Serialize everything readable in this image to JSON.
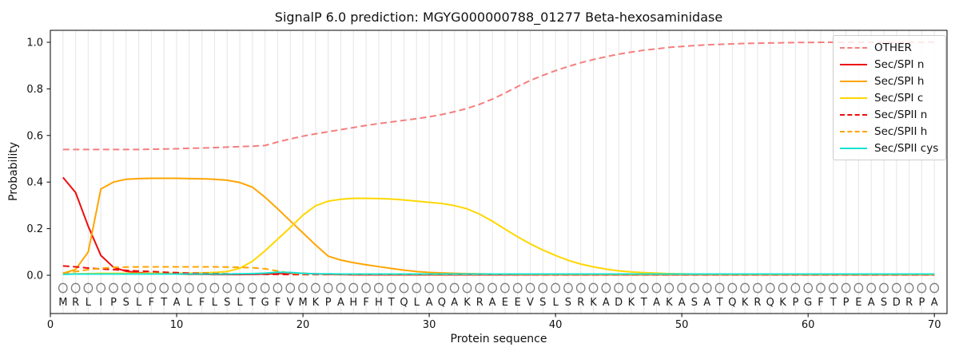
{
  "chart_data": {
    "type": "line",
    "title": "SignalP 6.0 prediction: MGYG000000788_01277 Beta-hexosaminidase",
    "xlabel": "Protein sequence",
    "ylabel": "Probability",
    "xlim": [
      0,
      71
    ],
    "ylim": [
      -0.17,
      1.05
    ],
    "xticks": [
      0,
      10,
      20,
      30,
      40,
      50,
      60,
      70
    ],
    "yticks": [
      0.0,
      0.2,
      0.4,
      0.6,
      0.8,
      1.0
    ],
    "grid": "vertical line per residue, light gray",
    "legend_position": "upper right",
    "sequence": "MRLIPSLFTALFLSLTGFVMKPAHFHTQLAQAKRAEEVSLSRKADKTAKASATQKRQKPGFTPEASDRPA",
    "sequence_marker": "open-circle",
    "colors": {
      "grid": "#e9e9e9",
      "axis": "#000000",
      "sequence_letter": "#1a1a1a",
      "sequence_circle": "#7d7d7d"
    },
    "x_start": 1,
    "series": [
      {
        "name": "OTHER",
        "color": "#f57e7e",
        "style": "dashed",
        "values": [
          0.54,
          0.54,
          0.54,
          0.54,
          0.54,
          0.54,
          0.54,
          0.541,
          0.542,
          0.543,
          0.545,
          0.546,
          0.548,
          0.55,
          0.552,
          0.554,
          0.557,
          0.572,
          0.585,
          0.597,
          0.607,
          0.616,
          0.625,
          0.634,
          0.643,
          0.651,
          0.658,
          0.665,
          0.672,
          0.68,
          0.69,
          0.702,
          0.716,
          0.734,
          0.756,
          0.782,
          0.81,
          0.836,
          0.858,
          0.878,
          0.896,
          0.912,
          0.926,
          0.938,
          0.949,
          0.958,
          0.966,
          0.972,
          0.978,
          0.982,
          0.986,
          0.989,
          0.991,
          0.993,
          0.995,
          0.996,
          0.997,
          0.998,
          0.999,
          0.999,
          1.0,
          1.0,
          1.0,
          1.0,
          1.0,
          1.0,
          1.0,
          1.0,
          1.0,
          1.0
        ]
      },
      {
        "name": "Sec/SPI n",
        "color": "#ee0d0d",
        "style": "solid",
        "values": [
          0.42,
          0.355,
          0.21,
          0.085,
          0.034,
          0.017,
          0.011,
          0.008,
          0.006,
          0.005,
          0.004,
          0.004,
          0.003,
          0.003,
          0.003,
          0.004,
          0.005,
          0.007,
          0.009,
          0.008,
          0.006,
          0.004,
          0.003,
          0.002,
          0.002,
          0.002,
          0.002,
          0.002,
          0.002,
          0.002,
          0.002,
          0.002,
          0.002,
          0.002,
          0.002,
          0.002,
          0.002,
          0.002,
          0.002,
          0.002,
          0.002,
          0.002,
          0.002,
          0.002,
          0.002,
          0.002,
          0.002,
          0.002,
          0.002,
          0.002,
          0.002,
          0.002,
          0.002,
          0.002,
          0.002,
          0.002,
          0.002,
          0.002,
          0.002,
          0.002,
          0.002,
          0.002,
          0.002,
          0.002,
          0.002,
          0.002,
          0.002,
          0.002,
          0.002,
          0.002
        ]
      },
      {
        "name": "Sec/SPI h",
        "color": "#ffa500",
        "style": "solid",
        "values": [
          0.008,
          0.025,
          0.1,
          0.37,
          0.4,
          0.412,
          0.415,
          0.416,
          0.416,
          0.416,
          0.415,
          0.414,
          0.412,
          0.408,
          0.398,
          0.378,
          0.335,
          0.285,
          0.233,
          0.182,
          0.13,
          0.082,
          0.065,
          0.054,
          0.045,
          0.037,
          0.029,
          0.022,
          0.016,
          0.012,
          0.01,
          0.008,
          0.007,
          0.006,
          0.005,
          0.005,
          0.004,
          0.004,
          0.003,
          0.003,
          0.003,
          0.003,
          0.003,
          0.003,
          0.003,
          0.003,
          0.003,
          0.003,
          0.003,
          0.003,
          0.003,
          0.003,
          0.003,
          0.003,
          0.003,
          0.003,
          0.003,
          0.003,
          0.003,
          0.003,
          0.003,
          0.003,
          0.003,
          0.003,
          0.003,
          0.003,
          0.003,
          0.003,
          0.003,
          0.003
        ]
      },
      {
        "name": "Sec/SPI c",
        "color": "#ffd700",
        "style": "solid",
        "values": [
          0.005,
          0.006,
          0.007,
          0.008,
          0.008,
          0.008,
          0.008,
          0.008,
          0.008,
          0.008,
          0.009,
          0.01,
          0.012,
          0.016,
          0.03,
          0.06,
          0.105,
          0.155,
          0.205,
          0.258,
          0.298,
          0.318,
          0.326,
          0.33,
          0.33,
          0.329,
          0.327,
          0.323,
          0.318,
          0.313,
          0.308,
          0.299,
          0.285,
          0.262,
          0.232,
          0.198,
          0.165,
          0.135,
          0.108,
          0.085,
          0.064,
          0.048,
          0.036,
          0.026,
          0.019,
          0.014,
          0.011,
          0.009,
          0.007,
          0.006,
          0.005,
          0.005,
          0.004,
          0.004,
          0.004,
          0.004,
          0.004,
          0.004,
          0.004,
          0.004,
          0.004,
          0.004,
          0.004,
          0.004,
          0.004,
          0.004,
          0.004,
          0.004,
          0.004,
          0.004
        ]
      },
      {
        "name": "Sec/SPII n",
        "color": "#ee0d0d",
        "style": "dashed",
        "values": [
          0.04,
          0.036,
          0.031,
          0.027,
          0.024,
          0.021,
          0.018,
          0.016,
          0.013,
          0.011,
          0.009,
          0.008,
          0.007,
          0.006,
          0.005,
          0.005,
          0.004,
          0.004,
          0.003,
          0.003,
          0.003,
          0.003,
          0.003,
          0.003,
          0.002,
          0.002,
          0.002,
          0.002,
          0.002,
          0.002,
          0.002,
          0.002,
          0.002,
          0.002,
          0.002,
          0.002,
          0.002,
          0.002,
          0.002,
          0.002,
          0.002,
          0.002,
          0.002,
          0.002,
          0.002,
          0.002,
          0.002,
          0.002,
          0.002,
          0.002,
          0.002,
          0.002,
          0.002,
          0.002,
          0.002,
          0.002,
          0.002,
          0.002,
          0.002,
          0.002,
          0.002,
          0.002,
          0.002,
          0.002,
          0.002,
          0.002,
          0.002,
          0.002,
          0.002,
          0.002
        ]
      },
      {
        "name": "Sec/SPII h",
        "color": "#ffa500",
        "style": "dashed",
        "values": [
          0.01,
          0.016,
          0.024,
          0.03,
          0.034,
          0.035,
          0.036,
          0.036,
          0.036,
          0.036,
          0.036,
          0.036,
          0.036,
          0.035,
          0.034,
          0.032,
          0.028,
          0.018,
          0.009,
          0.006,
          0.005,
          0.005,
          0.004,
          0.004,
          0.004,
          0.004,
          0.004,
          0.004,
          0.004,
          0.004,
          0.004,
          0.004,
          0.004,
          0.004,
          0.004,
          0.004,
          0.004,
          0.004,
          0.004,
          0.004,
          0.004,
          0.004,
          0.004,
          0.004,
          0.004,
          0.004,
          0.004,
          0.004,
          0.004,
          0.004,
          0.004,
          0.004,
          0.004,
          0.004,
          0.004,
          0.004,
          0.004,
          0.004,
          0.004,
          0.004,
          0.004,
          0.004,
          0.004,
          0.004,
          0.004,
          0.004,
          0.004,
          0.004,
          0.004,
          0.004
        ]
      },
      {
        "name": "Sec/SPII cys",
        "color": "#14e3d2",
        "style": "solid",
        "values": [
          0.004,
          0.005,
          0.005,
          0.005,
          0.005,
          0.005,
          0.005,
          0.005,
          0.005,
          0.005,
          0.005,
          0.005,
          0.005,
          0.005,
          0.006,
          0.007,
          0.009,
          0.013,
          0.012,
          0.008,
          0.006,
          0.006,
          0.005,
          0.005,
          0.005,
          0.005,
          0.005,
          0.005,
          0.005,
          0.005,
          0.005,
          0.005,
          0.005,
          0.005,
          0.005,
          0.005,
          0.005,
          0.005,
          0.005,
          0.005,
          0.005,
          0.005,
          0.005,
          0.005,
          0.005,
          0.005,
          0.005,
          0.005,
          0.005,
          0.005,
          0.005,
          0.005,
          0.005,
          0.005,
          0.005,
          0.005,
          0.005,
          0.005,
          0.005,
          0.005,
          0.005,
          0.005,
          0.005,
          0.005,
          0.005,
          0.005,
          0.005,
          0.005,
          0.005,
          0.005
        ]
      }
    ]
  }
}
